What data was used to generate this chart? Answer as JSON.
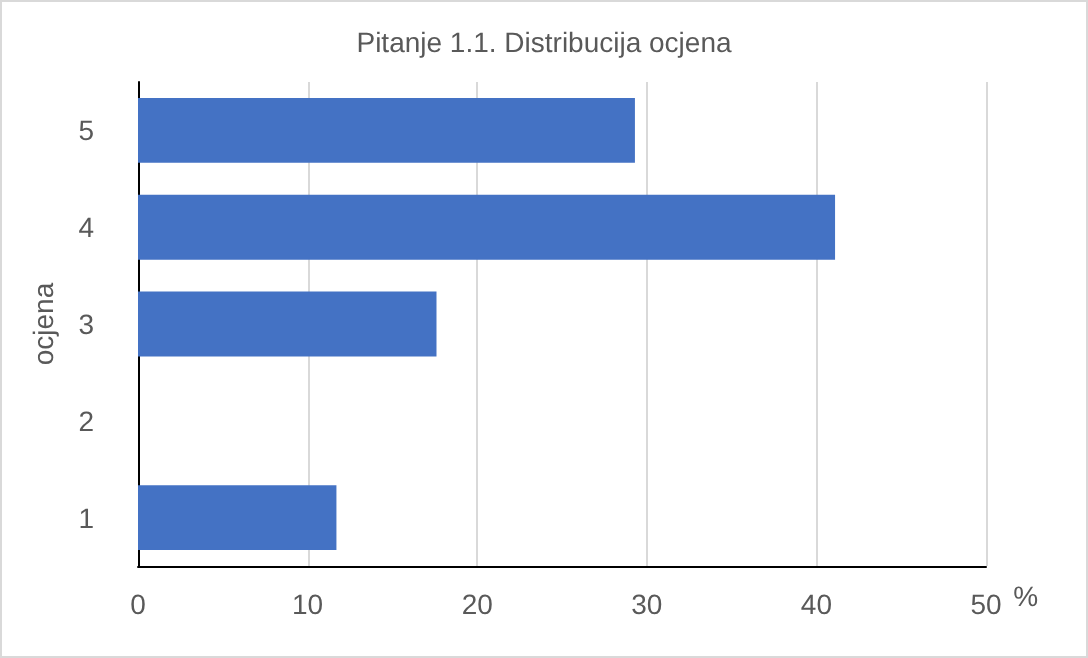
{
  "chart_data": {
    "type": "bar",
    "orientation": "horizontal",
    "title": "Pitanje 1.1. Distribucija ocjena",
    "xlabel": "%",
    "ylabel": "ocjena",
    "categories": [
      "5",
      "4",
      "3",
      "2",
      "1"
    ],
    "values": [
      29.3,
      41.1,
      17.6,
      0,
      11.7
    ],
    "color": "#4472c4",
    "xlim": [
      0,
      50
    ],
    "xticks": [
      0,
      10,
      20,
      30,
      40,
      50
    ],
    "grid": "x"
  }
}
